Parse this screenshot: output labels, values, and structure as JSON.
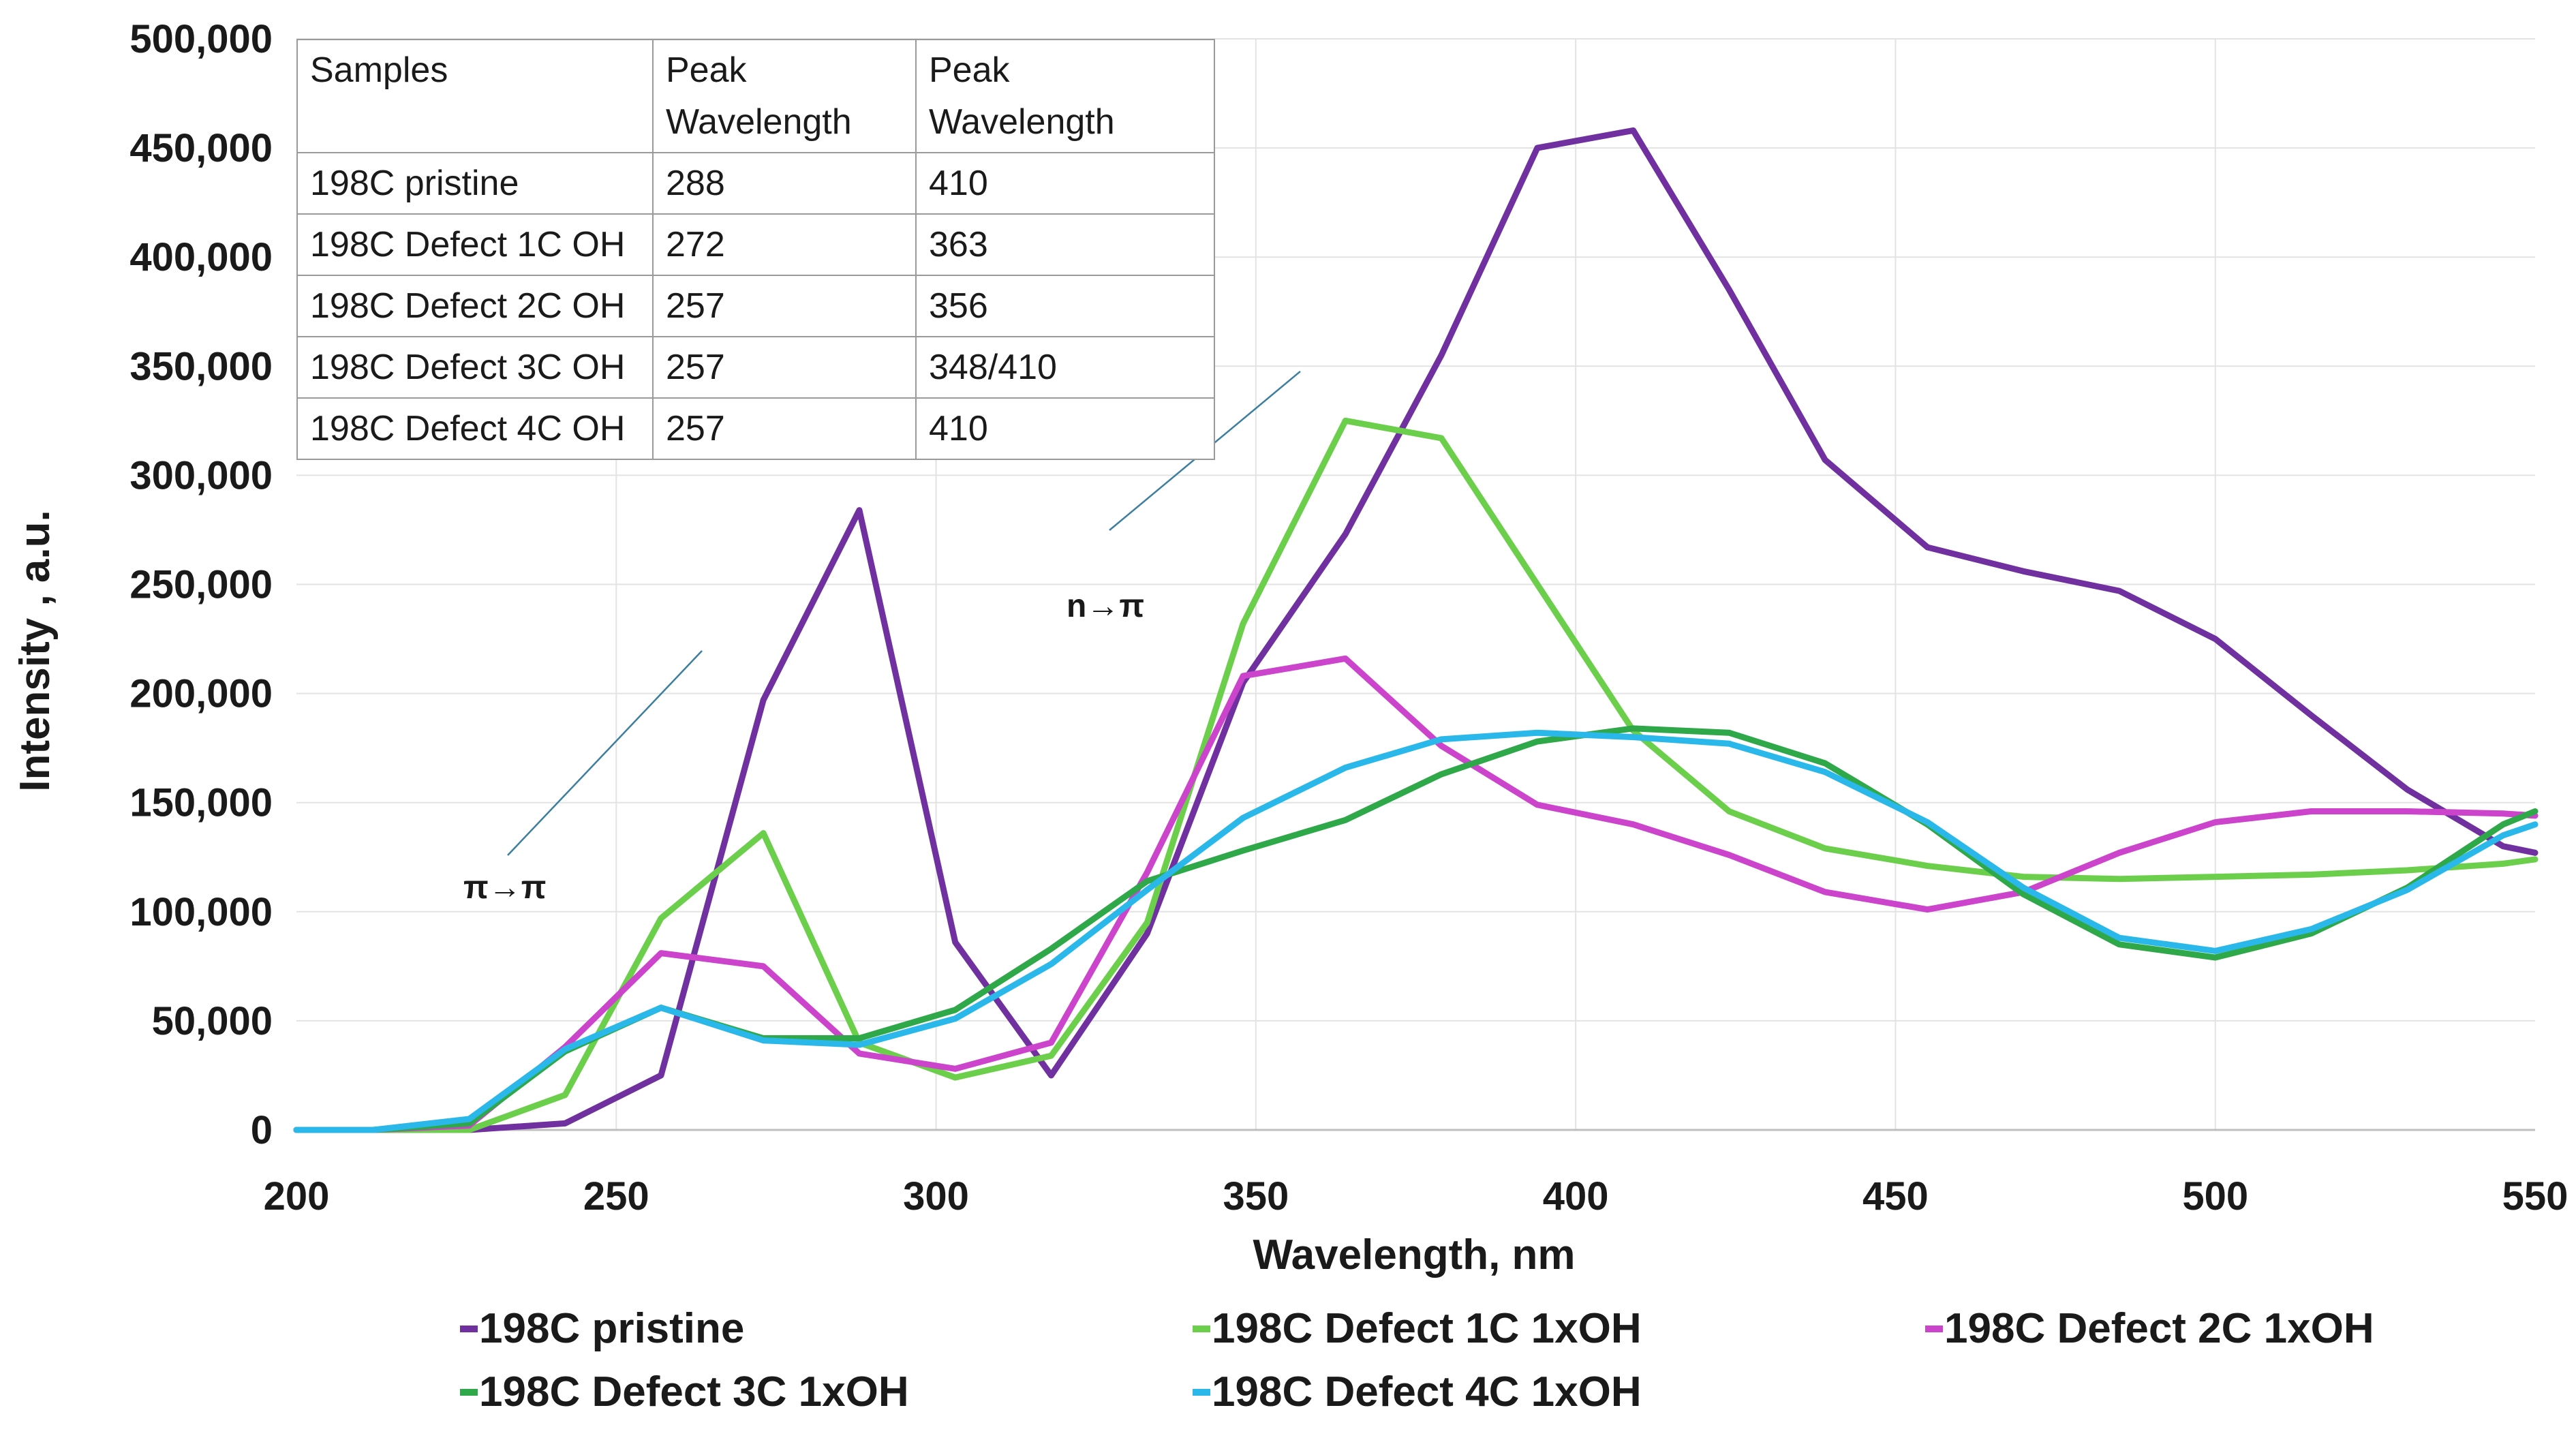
{
  "chart_data": {
    "type": "line",
    "title": "",
    "xlabel": "Wavelength, nm",
    "ylabel": "Intensity , a.u.",
    "xlim": [
      200,
      550
    ],
    "ylim": [
      0,
      500000
    ],
    "x_ticks": [
      200,
      250,
      300,
      350,
      400,
      450,
      500,
      550
    ],
    "x_tick_labels": [
      "200",
      "250",
      "300",
      "350",
      "400",
      "450",
      "500",
      "550"
    ],
    "y_ticks": [
      0,
      50000,
      100000,
      150000,
      200000,
      250000,
      300000,
      350000,
      400000,
      450000,
      500000
    ],
    "y_tick_labels": [
      "0",
      "50,000",
      "100,000",
      "150,000",
      "200,000",
      "250,000",
      "300,000",
      "350,000",
      "400,000",
      "450,000",
      "500,000"
    ],
    "grid": true,
    "legend_position": "bottom",
    "x": [
      200,
      212,
      227,
      242,
      257,
      273,
      288,
      303,
      318,
      333,
      348,
      364,
      379,
      394,
      409,
      424,
      439,
      455,
      470,
      485,
      500,
      515,
      530,
      545,
      550
    ],
    "series": [
      {
        "name": "198C pristine",
        "color": "#7030a0",
        "values": [
          0,
          0,
          0,
          3000,
          25000,
          197000,
          284000,
          86000,
          25000,
          90000,
          205000,
          273000,
          355000,
          450000,
          458000,
          385000,
          307000,
          267000,
          256000,
          247000,
          225000,
          190000,
          156000,
          130000,
          127000
        ]
      },
      {
        "name": "198C Defect 1C 1xOH",
        "color": "#6ccf4c",
        "values": [
          0,
          0,
          0,
          16000,
          97000,
          136000,
          40000,
          24000,
          34000,
          95000,
          232000,
          325000,
          317000,
          250000,
          183000,
          146000,
          129000,
          121000,
          116000,
          115000,
          116000,
          117000,
          119000,
          122000,
          124000
        ]
      },
      {
        "name": "198C Defect 2C 1xOH",
        "color": "#cc44cc",
        "values": [
          0,
          0,
          2000,
          38000,
          81000,
          75000,
          35000,
          28000,
          40000,
          118000,
          208000,
          216000,
          176000,
          149000,
          140000,
          126000,
          109000,
          101000,
          109000,
          127000,
          141000,
          146000,
          146000,
          145000,
          144000
        ]
      },
      {
        "name": "198C Defect 3C 1xOH",
        "color": "#2ea848",
        "values": [
          0,
          0,
          3000,
          36000,
          56000,
          42000,
          42000,
          55000,
          83000,
          114000,
          128000,
          142000,
          163000,
          178000,
          184000,
          182000,
          168000,
          140000,
          108000,
          85000,
          79000,
          90000,
          111000,
          140000,
          146000
        ]
      },
      {
        "name": "198C Defect 4C 1xOH",
        "color": "#2ab8ea",
        "values": [
          0,
          0,
          5000,
          37000,
          56000,
          41000,
          39000,
          51000,
          76000,
          110000,
          143000,
          166000,
          179000,
          182000,
          180000,
          177000,
          164000,
          141000,
          111000,
          88000,
          82000,
          92000,
          110000,
          135000,
          140000
        ]
      }
    ],
    "annotations": [
      "π→π",
      "n→π"
    ],
    "table": {
      "header": [
        "Samples",
        "Peak Wavelength",
        "Peak Wavelength"
      ],
      "rows": [
        [
          "198C pristine",
          "288",
          "410"
        ],
        [
          "198C Defect 1C OH",
          "272",
          "363"
        ],
        [
          "198C Defect 2C OH",
          "257",
          "356"
        ],
        [
          "198C Defect 3C OH",
          "257",
          "348/410"
        ],
        [
          "198C Defect 4C OH",
          "257",
          "410"
        ]
      ]
    }
  }
}
